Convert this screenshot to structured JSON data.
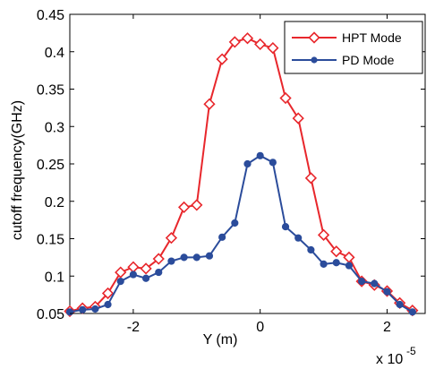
{
  "chart_data": {
    "type": "line",
    "title": "",
    "xlabel": "Y (m)",
    "ylabel": "cutoff frequency(GHz)",
    "x_exponent_label": "x 10",
    "x_exponent_power": "-5",
    "xlim": [
      -3.0,
      2.6
    ],
    "ylim": [
      0.05,
      0.45
    ],
    "xticks": [
      -2,
      0,
      2
    ],
    "xtick_labels": [
      "-2",
      "0",
      "2"
    ],
    "yticks": [
      0.05,
      0.1,
      0.15,
      0.2,
      0.25,
      0.3,
      0.35,
      0.4,
      0.45
    ],
    "ytick_labels": [
      "0.05",
      "0.1",
      "0.15",
      "0.2",
      "0.25",
      "0.3",
      "0.35",
      "0.4",
      "0.45"
    ],
    "grid": false,
    "legend_position": "top-right",
    "series": [
      {
        "name": "HPT Mode",
        "color": "#e8272c",
        "marker": "diamond-open",
        "x": [
          -3.0,
          -2.8,
          -2.6,
          -2.4,
          -2.2,
          -2.0,
          -1.8,
          -1.6,
          -1.4,
          -1.2,
          -1.0,
          -0.8,
          -0.6,
          -0.4,
          -0.2,
          0.0,
          0.2,
          0.4,
          0.6,
          0.8,
          1.0,
          1.2,
          1.4,
          1.6,
          1.8,
          2.0,
          2.2,
          2.4
        ],
        "y": [
          0.053,
          0.057,
          0.059,
          0.077,
          0.105,
          0.112,
          0.11,
          0.123,
          0.151,
          0.192,
          0.195,
          0.33,
          0.39,
          0.413,
          0.418,
          0.41,
          0.405,
          0.338,
          0.311,
          0.231,
          0.155,
          0.133,
          0.125,
          0.093,
          0.088,
          0.08,
          0.064,
          0.054
        ]
      },
      {
        "name": "PD Mode",
        "color": "#2b4c9b",
        "marker": "circle-filled",
        "x": [
          -3.0,
          -2.8,
          -2.6,
          -2.4,
          -2.2,
          -2.0,
          -1.8,
          -1.6,
          -1.4,
          -1.2,
          -1.0,
          -0.8,
          -0.6,
          -0.4,
          -0.2,
          0.0,
          0.2,
          0.4,
          0.6,
          0.8,
          1.0,
          1.2,
          1.4,
          1.6,
          1.8,
          2.0,
          2.2,
          2.4
        ],
        "y": [
          0.052,
          0.055,
          0.056,
          0.062,
          0.093,
          0.102,
          0.097,
          0.105,
          0.12,
          0.125,
          0.125,
          0.127,
          0.152,
          0.171,
          0.25,
          0.261,
          0.252,
          0.166,
          0.151,
          0.135,
          0.116,
          0.118,
          0.114,
          0.093,
          0.09,
          0.079,
          0.062,
          0.052
        ]
      }
    ]
  }
}
